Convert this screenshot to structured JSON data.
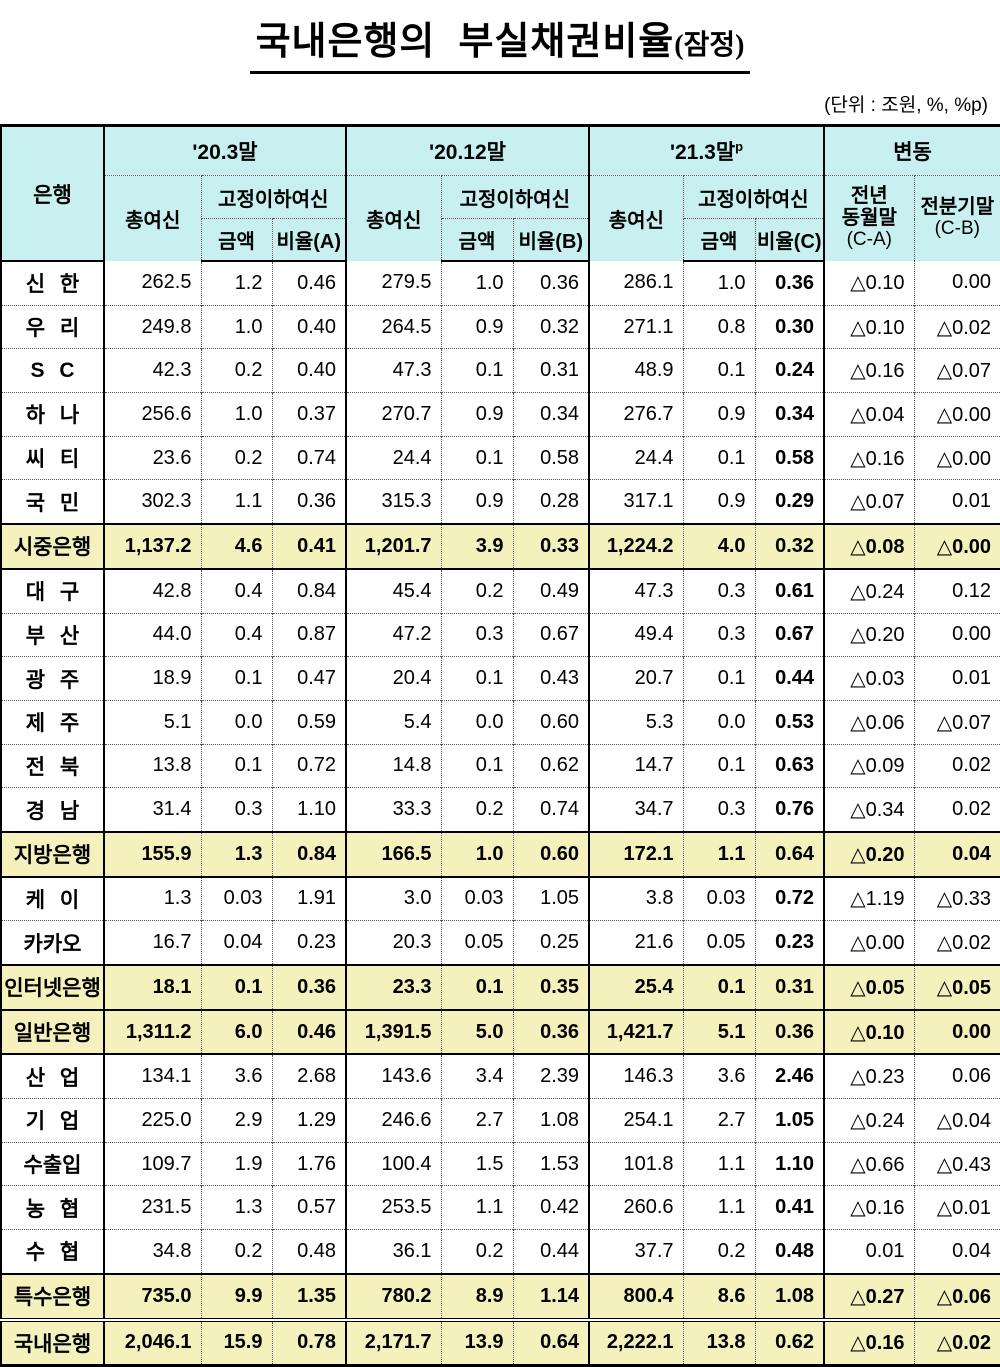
{
  "title": {
    "main": "국내은행의  부실채권비율",
    "suffix": "(잠정)"
  },
  "unit_note": "(단위 : 조원, %, %p)",
  "colors": {
    "header_bg": "#c9f0f0",
    "highlight_bg": "#f5f1bc",
    "border": "#000000"
  },
  "table": {
    "headers": {
      "bank": "은행",
      "periods": [
        {
          "label": "'20.3말",
          "sup": ""
        },
        {
          "label": "'20.12말",
          "sup": ""
        },
        {
          "label": "'21.3말",
          "sup": "p"
        }
      ],
      "change": "변동",
      "total_credit": "총여신",
      "substandard_credit": "고정이하여신",
      "amount": "금액",
      "ratios": [
        "비율(A)",
        "비율(B)",
        "비율(C)"
      ],
      "yoy": {
        "line1": "전년",
        "line2": "동월말",
        "sub": "(C-A)"
      },
      "qoq": {
        "line1": "전분기말",
        "sub": "(C-B)"
      }
    },
    "rows": [
      {
        "name": "신 한",
        "type": "normal",
        "sep": "none",
        "values": [
          "262.5",
          "1.2",
          "0.46",
          "279.5",
          "1.0",
          "0.36",
          "286.1",
          "1.0",
          "0.36",
          "△0.10",
          "0.00"
        ]
      },
      {
        "name": "우 리",
        "type": "normal",
        "sep": "dotted",
        "values": [
          "249.8",
          "1.0",
          "0.40",
          "264.5",
          "0.9",
          "0.32",
          "271.1",
          "0.8",
          "0.30",
          "△0.10",
          "△0.02"
        ]
      },
      {
        "name": "S C",
        "type": "normal",
        "sep": "dotted",
        "values": [
          "42.3",
          "0.2",
          "0.40",
          "47.3",
          "0.1",
          "0.31",
          "48.9",
          "0.1",
          "0.24",
          "△0.16",
          "△0.07"
        ]
      },
      {
        "name": "하 나",
        "type": "normal",
        "sep": "dotted",
        "values": [
          "256.6",
          "1.0",
          "0.37",
          "270.7",
          "0.9",
          "0.34",
          "276.7",
          "0.9",
          "0.34",
          "△0.04",
          "△0.00"
        ]
      },
      {
        "name": "씨 티",
        "type": "normal",
        "sep": "dotted",
        "values": [
          "23.6",
          "0.2",
          "0.74",
          "24.4",
          "0.1",
          "0.58",
          "24.4",
          "0.1",
          "0.58",
          "△0.16",
          "△0.00"
        ]
      },
      {
        "name": "국 민",
        "type": "normal",
        "sep": "dotted",
        "values": [
          "302.3",
          "1.1",
          "0.36",
          "315.3",
          "0.9",
          "0.28",
          "317.1",
          "0.9",
          "0.29",
          "△0.07",
          "0.01"
        ]
      },
      {
        "name": "시중은행",
        "type": "subtotal",
        "sep": "solid",
        "values": [
          "1,137.2",
          "4.6",
          "0.41",
          "1,201.7",
          "3.9",
          "0.33",
          "1,224.2",
          "4.0",
          "0.32",
          "△0.08",
          "△0.00"
        ]
      },
      {
        "name": "대 구",
        "type": "normal",
        "sep": "solid",
        "values": [
          "42.8",
          "0.4",
          "0.84",
          "45.4",
          "0.2",
          "0.49",
          "47.3",
          "0.3",
          "0.61",
          "△0.24",
          "0.12"
        ]
      },
      {
        "name": "부 산",
        "type": "normal",
        "sep": "dotted",
        "values": [
          "44.0",
          "0.4",
          "0.87",
          "47.2",
          "0.3",
          "0.67",
          "49.4",
          "0.3",
          "0.67",
          "△0.20",
          "0.00"
        ]
      },
      {
        "name": "광 주",
        "type": "normal",
        "sep": "dotted",
        "values": [
          "18.9",
          "0.1",
          "0.47",
          "20.4",
          "0.1",
          "0.43",
          "20.7",
          "0.1",
          "0.44",
          "△0.03",
          "0.01"
        ]
      },
      {
        "name": "제 주",
        "type": "normal",
        "sep": "dotted",
        "values": [
          "5.1",
          "0.0",
          "0.59",
          "5.4",
          "0.0",
          "0.60",
          "5.3",
          "0.0",
          "0.53",
          "△0.06",
          "△0.07"
        ]
      },
      {
        "name": "전 북",
        "type": "normal",
        "sep": "dotted",
        "values": [
          "13.8",
          "0.1",
          "0.72",
          "14.8",
          "0.1",
          "0.62",
          "14.7",
          "0.1",
          "0.63",
          "△0.09",
          "0.02"
        ]
      },
      {
        "name": "경 남",
        "type": "normal",
        "sep": "dotted",
        "values": [
          "31.4",
          "0.3",
          "1.10",
          "33.3",
          "0.2",
          "0.74",
          "34.7",
          "0.3",
          "0.76",
          "△0.34",
          "0.02"
        ]
      },
      {
        "name": "지방은행",
        "type": "subtotal",
        "sep": "solid",
        "values": [
          "155.9",
          "1.3",
          "0.84",
          "166.5",
          "1.0",
          "0.60",
          "172.1",
          "1.1",
          "0.64",
          "△0.20",
          "0.04"
        ]
      },
      {
        "name": "케 이",
        "type": "normal",
        "sep": "solid",
        "values": [
          "1.3",
          "0.03",
          "1.91",
          "3.0",
          "0.03",
          "1.05",
          "3.8",
          "0.03",
          "0.72",
          "△1.19",
          "△0.33"
        ]
      },
      {
        "name": "카카오",
        "type": "normal",
        "sep": "dotted",
        "values": [
          "16.7",
          "0.04",
          "0.23",
          "20.3",
          "0.05",
          "0.25",
          "21.6",
          "0.05",
          "0.23",
          "△0.00",
          "△0.02"
        ]
      },
      {
        "name": "인터넷은행",
        "type": "subtotal",
        "sep": "solid",
        "values": [
          "18.1",
          "0.1",
          "0.36",
          "23.3",
          "0.1",
          "0.35",
          "25.4",
          "0.1",
          "0.31",
          "△0.05",
          "△0.05"
        ]
      },
      {
        "name": "일반은행",
        "type": "subtotal",
        "sep": "solid",
        "values": [
          "1,311.2",
          "6.0",
          "0.46",
          "1,391.5",
          "5.0",
          "0.36",
          "1,421.7",
          "5.1",
          "0.36",
          "△0.10",
          "0.00"
        ]
      },
      {
        "name": "산 업",
        "type": "normal",
        "sep": "solid",
        "values": [
          "134.1",
          "3.6",
          "2.68",
          "143.6",
          "3.4",
          "2.39",
          "146.3",
          "3.6",
          "2.46",
          "△0.23",
          "0.06"
        ]
      },
      {
        "name": "기 업",
        "type": "normal",
        "sep": "dotted",
        "values": [
          "225.0",
          "2.9",
          "1.29",
          "246.6",
          "2.7",
          "1.08",
          "254.1",
          "2.7",
          "1.05",
          "△0.24",
          "△0.04"
        ]
      },
      {
        "name": "수출입",
        "type": "normal",
        "sep": "dotted",
        "values": [
          "109.7",
          "1.9",
          "1.76",
          "100.4",
          "1.5",
          "1.53",
          "101.8",
          "1.1",
          "1.10",
          "△0.66",
          "△0.43"
        ]
      },
      {
        "name": "농 협",
        "type": "normal",
        "sep": "dotted",
        "values": [
          "231.5",
          "1.3",
          "0.57",
          "253.5",
          "1.1",
          "0.42",
          "260.6",
          "1.1",
          "0.41",
          "△0.16",
          "△0.01"
        ]
      },
      {
        "name": "수 협",
        "type": "normal",
        "sep": "dotted",
        "values": [
          "34.8",
          "0.2",
          "0.48",
          "36.1",
          "0.2",
          "0.44",
          "37.7",
          "0.2",
          "0.48",
          "0.01",
          "0.04"
        ]
      },
      {
        "name": "특수은행",
        "type": "subtotal",
        "sep": "solid",
        "values": [
          "735.0",
          "9.9",
          "1.35",
          "780.2",
          "8.9",
          "1.14",
          "800.4",
          "8.6",
          "1.08",
          "△0.27",
          "△0.06"
        ]
      },
      {
        "name": "국내은행",
        "type": "grand",
        "sep": "double",
        "values": [
          "2,046.1",
          "15.9",
          "0.78",
          "2,171.7",
          "13.9",
          "0.64",
          "2,222.1",
          "13.8",
          "0.62",
          "△0.16",
          "△0.02"
        ]
      }
    ]
  }
}
